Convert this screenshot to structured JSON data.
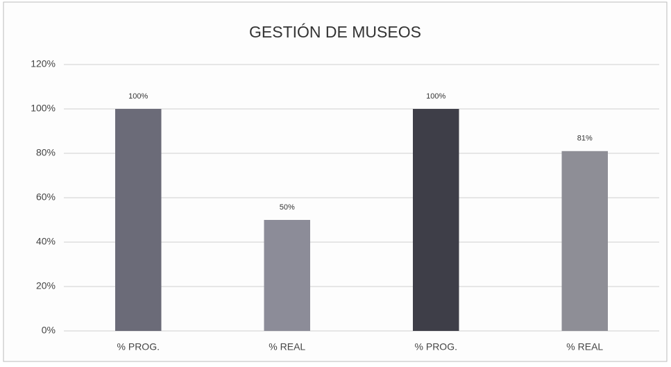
{
  "chart_data": {
    "type": "bar",
    "title": "GESTIÓN DE MUSEOS",
    "categories": [
      "% PROG.",
      "% REAL",
      "% PROG.",
      "% REAL"
    ],
    "values": [
      100,
      50,
      100,
      81
    ],
    "value_labels": [
      "100%",
      "50%",
      "100%",
      "81%"
    ],
    "colors": [
      "#6b6b78",
      "#8c8c98",
      "#3e3e48",
      "#8e8e96"
    ],
    "ylim": [
      0,
      120
    ],
    "yticks": [
      {
        "value": 0,
        "label": "0%"
      },
      {
        "value": 20,
        "label": "20%"
      },
      {
        "value": 40,
        "label": "40%"
      },
      {
        "value": 60,
        "label": "60%"
      },
      {
        "value": 80,
        "label": "80%"
      },
      {
        "value": 100,
        "label": "100%"
      },
      {
        "value": 120,
        "label": "120%"
      }
    ],
    "grid": true
  }
}
